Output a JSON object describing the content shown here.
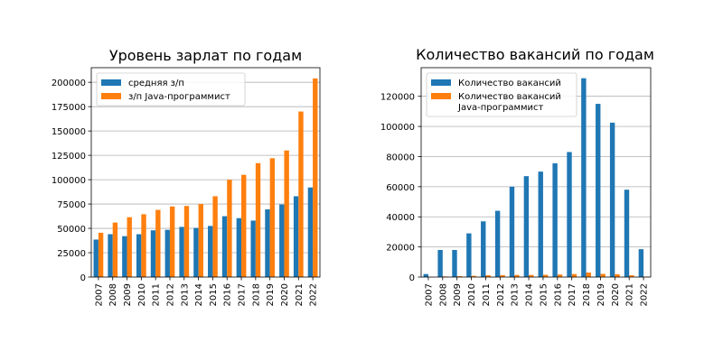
{
  "colors": {
    "series_blue": "#1f77b4",
    "series_orange": "#ff7f0e",
    "grid": "#b0b0b0"
  },
  "chart_data": [
    {
      "type": "bar",
      "title": "Уровень зарлат по годам",
      "xlabel": "",
      "ylabel": "",
      "ylim": [
        0,
        215000
      ],
      "yticks": [
        0,
        25000,
        50000,
        75000,
        100000,
        125000,
        150000,
        175000,
        200000
      ],
      "grid": "y",
      "legend_position": "top-left",
      "categories": [
        "2007",
        "2008",
        "2009",
        "2010",
        "2011",
        "2012",
        "2013",
        "2014",
        "2015",
        "2016",
        "2017",
        "2018",
        "2019",
        "2020",
        "2021",
        "2022"
      ],
      "series": [
        {
          "name": "средняя з/п",
          "color": "#1f77b4",
          "values": [
            38500,
            44000,
            42000,
            44000,
            48000,
            48500,
            51500,
            50500,
            52500,
            62500,
            60500,
            58000,
            69500,
            74500,
            83000,
            92000
          ]
        },
        {
          "name": "з/п Java-программист",
          "color": "#ff7f0e",
          "values": [
            45500,
            56000,
            61500,
            64500,
            69000,
            72500,
            73000,
            75000,
            83000,
            100000,
            105000,
            117000,
            122000,
            130000,
            170000,
            204000
          ]
        }
      ]
    },
    {
      "type": "bar",
      "title": "Количество вакансий по годам",
      "xlabel": "",
      "ylabel": "",
      "ylim": [
        0,
        139000
      ],
      "yticks": [
        0,
        20000,
        40000,
        60000,
        80000,
        100000,
        120000
      ],
      "grid": "y",
      "legend_position": "top-left",
      "categories": [
        "2007",
        "2008",
        "2009",
        "2010",
        "2011",
        "2012",
        "2013",
        "2014",
        "2015",
        "2016",
        "2017",
        "2018",
        "2019",
        "2020",
        "2021",
        "2022"
      ],
      "series": [
        {
          "name": "Количество вакансий",
          "color": "#1f77b4",
          "values": [
            2000,
            18000,
            18000,
            29000,
            37000,
            44000,
            60000,
            67000,
            70000,
            75500,
            83000,
            132000,
            115000,
            102500,
            58000,
            18500
          ]
        },
        {
          "name": "Количество вакансий\nJava-программист",
          "color": "#ff7f0e",
          "values": [
            0,
            400,
            600,
            800,
            1200,
            1300,
            1400,
            1400,
            1500,
            1700,
            2000,
            3000,
            2100,
            1900,
            1200,
            300
          ]
        }
      ]
    }
  ]
}
